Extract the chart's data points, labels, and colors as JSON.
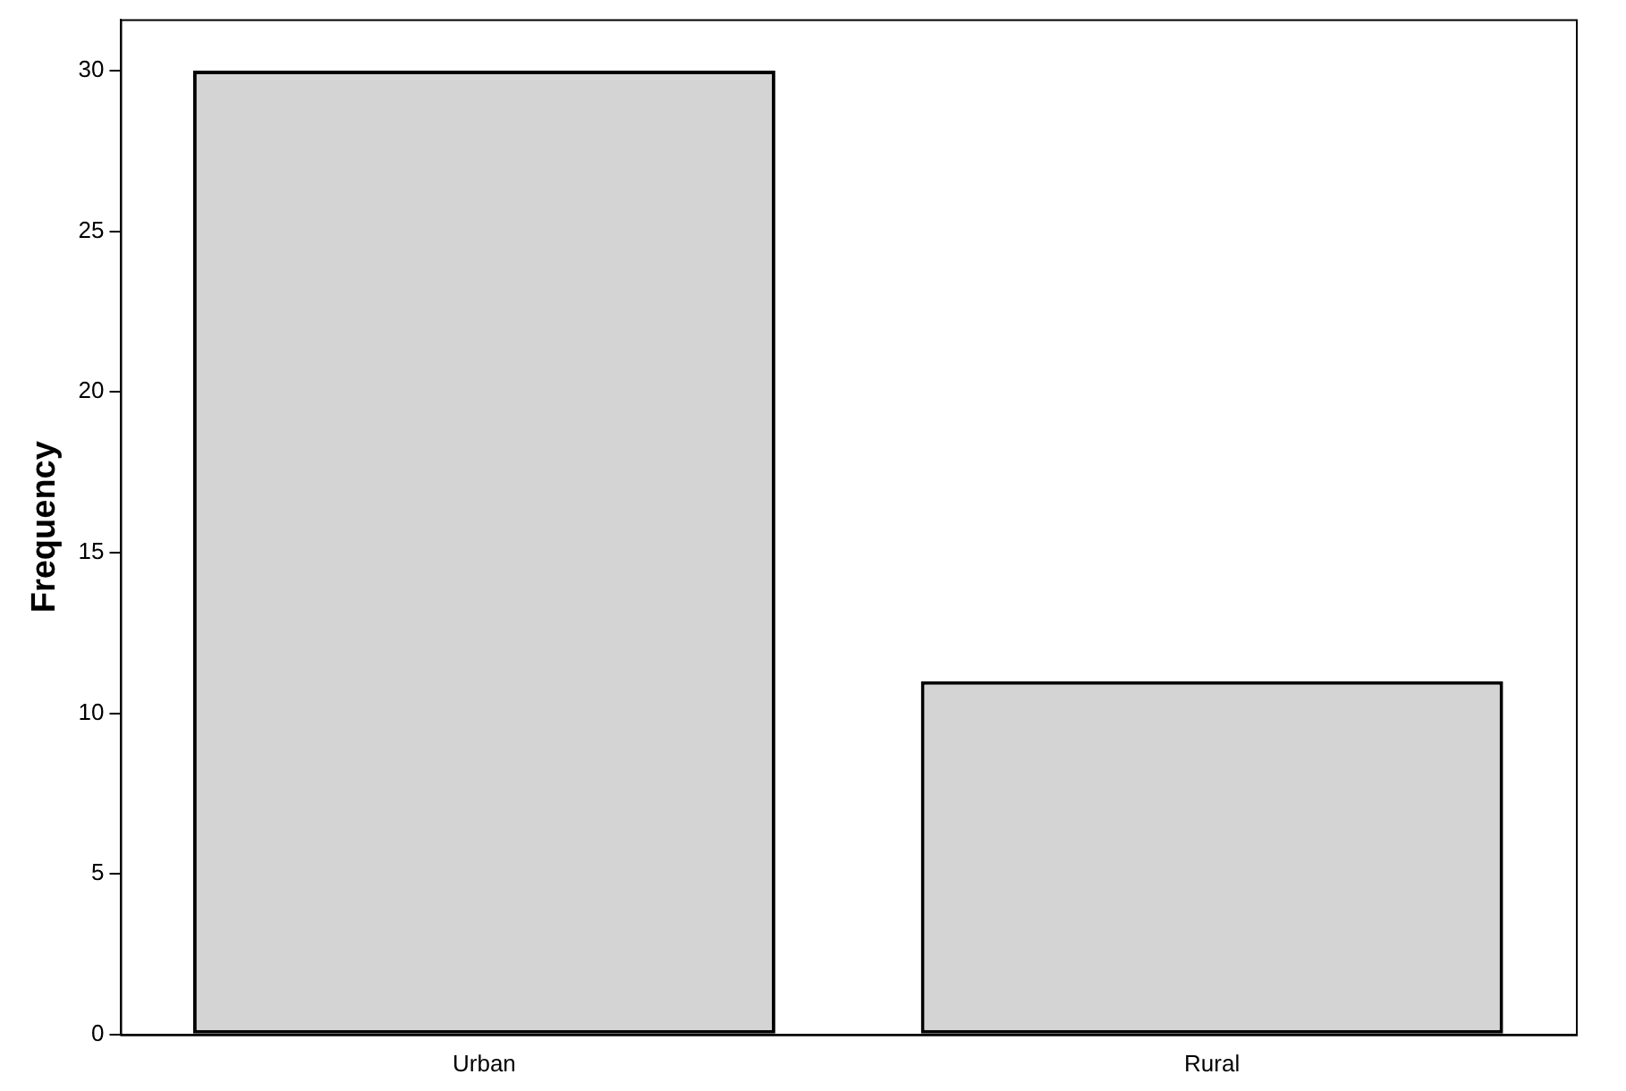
{
  "chart_data": {
    "type": "bar",
    "ylabel": "Frequency",
    "categories": [
      "Urban",
      "Rural"
    ],
    "values": [
      30,
      11
    ],
    "color": "#d4d4d4",
    "ylim": [
      0,
      31.6
    ],
    "yticks": [
      0,
      5,
      10,
      15,
      20,
      25,
      30
    ],
    "grid": false,
    "legend": false
  }
}
